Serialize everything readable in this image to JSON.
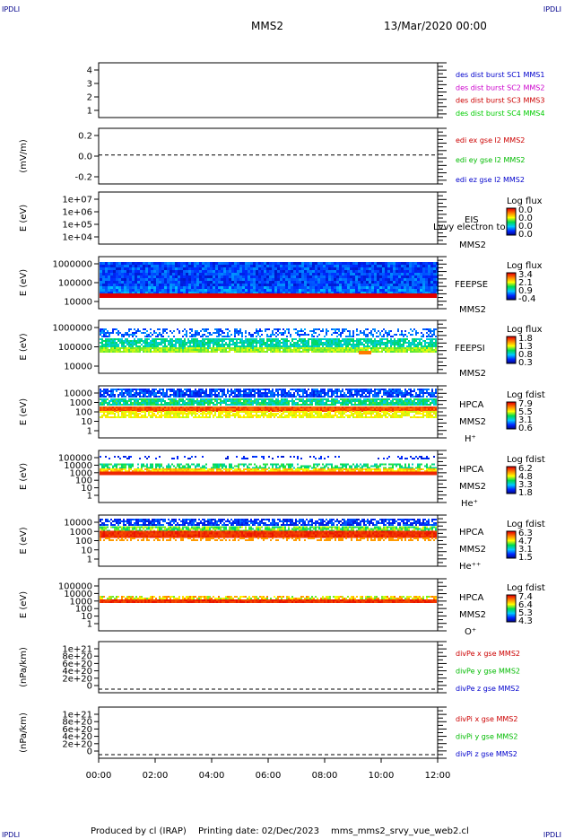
{
  "corner_marks": {
    "tl": "IPDLI",
    "tr": "IPDLI",
    "bl": "IPDLI",
    "br": "IPDLI"
  },
  "header": {
    "spacecraft": "MMS2",
    "datetime": "13/Mar/2020 00:00"
  },
  "footer": {
    "produced_by": "Produced by cl (IRAP)",
    "printing_date": "Printing date: 02/Dec/2023",
    "filename": "mms_mms2_srvy_vue_web2.cl"
  },
  "chart_data": [
    {
      "type": "line",
      "panel": "burst",
      "ylim": [
        0.5,
        4.5
      ],
      "yticks": [
        "4",
        "3",
        "2",
        "1"
      ],
      "ylabel": "",
      "legend": [
        {
          "name": "des dist burst SC1 MMS1",
          "color": "#0000cc"
        },
        {
          "name": "des dist burst SC2 MMS2",
          "color": "#cc00cc"
        },
        {
          "name": "des dist burst SC3 MMS3",
          "color": "#cc0000"
        },
        {
          "name": "des dist burst SC4 MMS4",
          "color": "#00cc00"
        }
      ]
    },
    {
      "type": "line",
      "panel": "edi",
      "ylim": [
        -0.3,
        0.3
      ],
      "yticks": [
        "0.2",
        "0.0",
        "-0.2"
      ],
      "ylabel": "(mV/m)",
      "dashed_zero": true,
      "legend": [
        {
          "name": "edi ex gse l2 MMS2",
          "color": "#cc0000"
        },
        {
          "name": "edi ey gse l2 MMS2",
          "color": "#00bb00"
        },
        {
          "name": "edi ez gse l2 MMS2",
          "color": "#0000cc"
        }
      ]
    },
    {
      "type": "heatmap",
      "panel": "eis",
      "ylabel": "E (eV)",
      "yticks": [
        "1e+07",
        "1e+06",
        "1e+05",
        "1e+04"
      ],
      "labels": [
        "EIS",
        "MMS2"
      ],
      "overlay": "Lvvy electron to",
      "cbar_title": "Log flux",
      "cbar_ticks": [
        "0.0",
        "0.0",
        "0.0",
        "0.0"
      ]
    },
    {
      "type": "heatmap",
      "panel": "feepse",
      "ylabel": "E (eV)",
      "yticks": [
        "1000000",
        "100000",
        "10000"
      ],
      "labels": [
        "FEEPSE",
        "MMS2"
      ],
      "cbar_title": "Log flux",
      "cbar_ticks": [
        "3.4",
        "2.1",
        "0.9",
        "-0.4"
      ]
    },
    {
      "type": "heatmap",
      "panel": "feepsi",
      "ylabel": "E (eV)",
      "yticks": [
        "1000000",
        "100000",
        "10000"
      ],
      "labels": [
        "FEEPSI",
        "MMS2"
      ],
      "cbar_title": "Log flux",
      "cbar_ticks": [
        "1.8",
        "1.3",
        "0.8",
        "0.3"
      ]
    },
    {
      "type": "heatmap",
      "panel": "hpca_h",
      "ylabel": "E (eV)",
      "yticks": [
        "10000",
        "1000",
        "100",
        "10",
        "1"
      ],
      "labels": [
        "HPCA",
        "MMS2",
        "H⁺"
      ],
      "cbar_title": "Log fdist",
      "cbar_ticks": [
        "7.9",
        "5.5",
        "3.1",
        "0.6"
      ]
    },
    {
      "type": "heatmap",
      "panel": "hpca_he",
      "ylabel": "E (eV)",
      "yticks": [
        "100000",
        "10000",
        "1000",
        "100",
        "10",
        "1"
      ],
      "labels": [
        "HPCA",
        "MMS2",
        "He⁺"
      ],
      "cbar_title": "Log fdist",
      "cbar_ticks": [
        "6.2",
        "4.8",
        "3.3",
        "1.8"
      ]
    },
    {
      "type": "heatmap",
      "panel": "hpca_hepp",
      "ylabel": "E (eV)",
      "yticks": [
        "10000",
        "1000",
        "100",
        "10",
        "1"
      ],
      "labels": [
        "HPCA",
        "MMS2",
        "He⁺⁺"
      ],
      "cbar_title": "Log fdist",
      "cbar_ticks": [
        "6.3",
        "4.7",
        "3.1",
        "1.5"
      ]
    },
    {
      "type": "heatmap",
      "panel": "hpca_o",
      "ylabel": "E (eV)",
      "yticks": [
        "100000",
        "10000",
        "1000",
        "100",
        "10",
        "1"
      ],
      "labels": [
        "HPCA",
        "MMS2",
        "O⁺"
      ],
      "cbar_title": "Log fdist",
      "cbar_ticks": [
        "7.4",
        "6.4",
        "5.3",
        "4.3"
      ]
    },
    {
      "type": "line",
      "panel": "divpe",
      "ylabel": "(nPa/km)",
      "yticks": [
        "1e+21",
        "8e+20",
        "6e+20",
        "4e+20",
        "2e+20",
        "0"
      ],
      "dashed_zero": true,
      "legend": [
        {
          "name": "divPe x gse MMS2",
          "color": "#cc0000"
        },
        {
          "name": "divPe y gse MMS2",
          "color": "#00bb00"
        },
        {
          "name": "divPe z gse MMS2",
          "color": "#0000cc"
        }
      ]
    },
    {
      "type": "line",
      "panel": "divpi",
      "ylabel": "(nPa/km)",
      "yticks": [
        "1e+21",
        "8e+20",
        "6e+20",
        "4e+20",
        "2e+20",
        "0"
      ],
      "dashed_zero": true,
      "legend": [
        {
          "name": "divPi x gse MMS2",
          "color": "#cc0000"
        },
        {
          "name": "divPi y gse MMS2",
          "color": "#00bb00"
        },
        {
          "name": "divPi z gse MMS2",
          "color": "#0000cc"
        }
      ]
    }
  ],
  "x_axis": {
    "ticks": [
      "00:00",
      "02:00",
      "04:00",
      "06:00",
      "08:00",
      "10:00",
      "12:00"
    ]
  }
}
